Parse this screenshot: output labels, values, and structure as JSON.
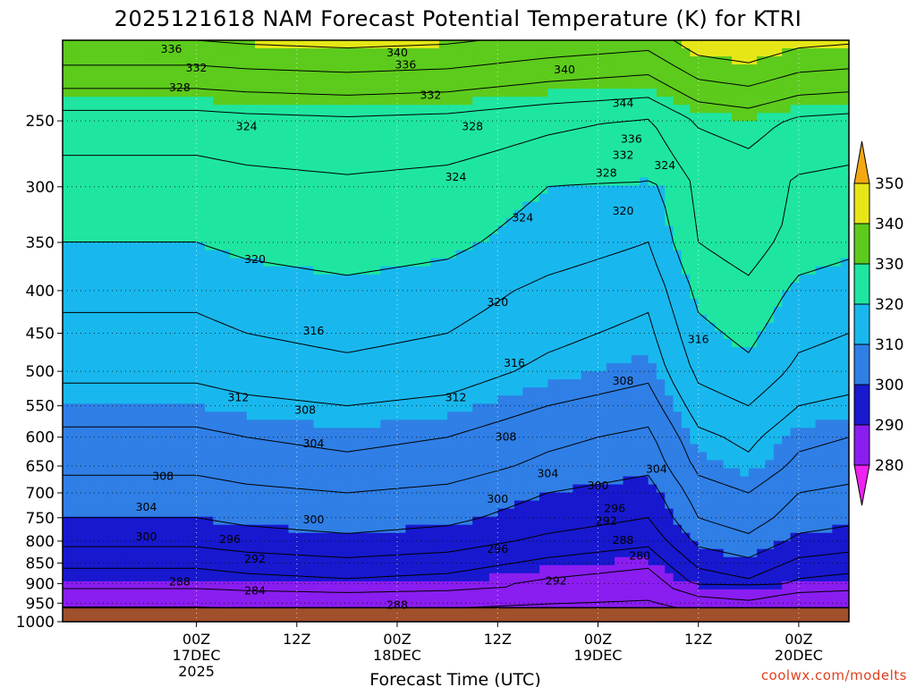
{
  "title": "2025121618 NAM Forecast Potential Temperature (K) for KTRI",
  "credit": "coolwx.com/modelts",
  "chart_data": {
    "type": "contour",
    "title": "2025121618 NAM Forecast Potential Temperature (K) for KTRI",
    "xlabel": "Forecast Time (UTC)",
    "ylabel": "",
    "x_unit": "forecast hours from 2025121618",
    "xlim": [
      -10,
      84
    ],
    "y_unit": "pressure (hPa)",
    "ylim": [
      1000,
      200
    ],
    "y_ticks": [
      250,
      300,
      350,
      400,
      450,
      500,
      550,
      600,
      650,
      700,
      750,
      800,
      850,
      900,
      950,
      1000
    ],
    "x_ticks": [
      {
        "hour": 6,
        "line1": "00Z",
        "line2": "17DEC",
        "line3": "2025"
      },
      {
        "hour": 18,
        "line1": "12Z",
        "line2": "",
        "line3": ""
      },
      {
        "hour": 30,
        "line1": "00Z",
        "line2": "18DEC",
        "line3": ""
      },
      {
        "hour": 42,
        "line1": "12Z",
        "line2": "",
        "line3": ""
      },
      {
        "hour": 54,
        "line1": "00Z",
        "line2": "19DEC",
        "line3": ""
      },
      {
        "hour": 66,
        "line1": "12Z",
        "line2": "",
        "line3": ""
      },
      {
        "hour": 78,
        "line1": "00Z",
        "line2": "20DEC",
        "line3": ""
      }
    ],
    "colorbar": {
      "labels": [
        "350",
        "340",
        "330",
        "320",
        "310",
        "300",
        "290",
        "280"
      ],
      "bins": [
        {
          "lo": 270,
          "hi": 280,
          "color": "#ee22ee"
        },
        {
          "lo": 280,
          "hi": 290,
          "color": "#8a1df0"
        },
        {
          "lo": 290,
          "hi": 300,
          "color": "#1818cf"
        },
        {
          "lo": 300,
          "hi": 310,
          "color": "#2f7fe6"
        },
        {
          "lo": 310,
          "hi": 320,
          "color": "#18b8ee"
        },
        {
          "lo": 320,
          "hi": 330,
          "color": "#1ee6a0"
        },
        {
          "lo": 330,
          "hi": 340,
          "color": "#5ccb1c"
        },
        {
          "lo": 340,
          "hi": 350,
          "color": "#e6e617"
        },
        {
          "lo": 350,
          "hi": 360,
          "color": "#f3a814"
        }
      ]
    },
    "ground": {
      "pressure": 962,
      "color": "#a0502a"
    },
    "theta_profile": [
      {
        "p": 200,
        "theta": 340
      },
      {
        "p": 250,
        "theta": 326
      },
      {
        "p": 300,
        "theta": 322
      },
      {
        "p": 350,
        "theta": 320
      },
      {
        "p": 400,
        "theta": 317
      },
      {
        "p": 450,
        "theta": 315
      },
      {
        "p": 500,
        "theta": 313
      },
      {
        "p": 550,
        "theta": 310
      },
      {
        "p": 600,
        "theta": 307
      },
      {
        "p": 650,
        "theta": 305
      },
      {
        "p": 700,
        "theta": 302
      },
      {
        "p": 750,
        "theta": 300
      },
      {
        "p": 800,
        "theta": 297
      },
      {
        "p": 850,
        "theta": 293
      },
      {
        "p": 900,
        "theta": 289
      },
      {
        "p": 950,
        "theta": 285
      },
      {
        "p": 1000,
        "theta": 280
      }
    ],
    "time_anomaly": [
      {
        "hour": -10,
        "dtheta": 0
      },
      {
        "hour": 6,
        "dtheta": 0
      },
      {
        "hour": 12,
        "dtheta": 1
      },
      {
        "hour": 24,
        "dtheta": 2
      },
      {
        "hour": 36,
        "dtheta": 1
      },
      {
        "hour": 48,
        "dtheta": -2
      },
      {
        "hour": 54,
        "dtheta": -3
      },
      {
        "hour": 60,
        "dtheta": -4
      },
      {
        "hour": 66,
        "dtheta": 4
      },
      {
        "hour": 72,
        "dtheta": 6
      },
      {
        "hour": 78,
        "dtheta": 2
      },
      {
        "hour": 84,
        "dtheta": 1
      }
    ],
    "contour_labels": [
      {
        "value": "336",
        "hour": 3,
        "p": 205
      },
      {
        "value": "332",
        "hour": 6,
        "p": 216
      },
      {
        "value": "328",
        "hour": 4,
        "p": 228
      },
      {
        "value": "324",
        "hour": 12,
        "p": 254
      },
      {
        "value": "340",
        "hour": 30,
        "p": 207
      },
      {
        "value": "336",
        "hour": 31,
        "p": 214
      },
      {
        "value": "332",
        "hour": 34,
        "p": 233
      },
      {
        "value": "328",
        "hour": 39,
        "p": 254
      },
      {
        "value": "340",
        "hour": 50,
        "p": 217
      },
      {
        "value": "344",
        "hour": 57,
        "p": 238
      },
      {
        "value": "336",
        "hour": 58,
        "p": 263
      },
      {
        "value": "332",
        "hour": 57,
        "p": 275
      },
      {
        "value": "328",
        "hour": 55,
        "p": 289
      },
      {
        "value": "324",
        "hour": 62,
        "p": 283
      },
      {
        "value": "324",
        "hour": 37,
        "p": 292
      },
      {
        "value": "324",
        "hour": 45,
        "p": 327
      },
      {
        "value": "320",
        "hour": 57,
        "p": 321
      },
      {
        "value": "320",
        "hour": 13,
        "p": 367
      },
      {
        "value": "320",
        "hour": 42,
        "p": 413
      },
      {
        "value": "316",
        "hour": 20,
        "p": 447
      },
      {
        "value": "316",
        "hour": 44,
        "p": 489
      },
      {
        "value": "316",
        "hour": 66,
        "p": 458
      },
      {
        "value": "312",
        "hour": 11,
        "p": 538
      },
      {
        "value": "312",
        "hour": 37,
        "p": 538
      },
      {
        "value": "308",
        "hour": 19,
        "p": 557
      },
      {
        "value": "308",
        "hour": 57,
        "p": 514
      },
      {
        "value": "308",
        "hour": 43,
        "p": 600
      },
      {
        "value": "308",
        "hour": 2,
        "p": 669
      },
      {
        "value": "304",
        "hour": 20,
        "p": 611
      },
      {
        "value": "304",
        "hour": 48,
        "p": 664
      },
      {
        "value": "304",
        "hour": 61,
        "p": 656
      },
      {
        "value": "304",
        "hour": 0,
        "p": 728
      },
      {
        "value": "300",
        "hour": 0,
        "p": 790
      },
      {
        "value": "300",
        "hour": 20,
        "p": 754
      },
      {
        "value": "300",
        "hour": 42,
        "p": 712
      },
      {
        "value": "300",
        "hour": 54,
        "p": 686
      },
      {
        "value": "296",
        "hour": 10,
        "p": 796
      },
      {
        "value": "296",
        "hour": 42,
        "p": 818
      },
      {
        "value": "296",
        "hour": 56,
        "p": 731
      },
      {
        "value": "292",
        "hour": 13,
        "p": 841
      },
      {
        "value": "292",
        "hour": 49,
        "p": 893
      },
      {
        "value": "292",
        "hour": 55,
        "p": 757
      },
      {
        "value": "288",
        "hour": 4,
        "p": 896
      },
      {
        "value": "288",
        "hour": 30,
        "p": 955
      },
      {
        "value": "288",
        "hour": 57,
        "p": 798
      },
      {
        "value": "284",
        "hour": 13,
        "p": 918
      },
      {
        "value": "280",
        "hour": 59,
        "p": 834
      }
    ]
  }
}
